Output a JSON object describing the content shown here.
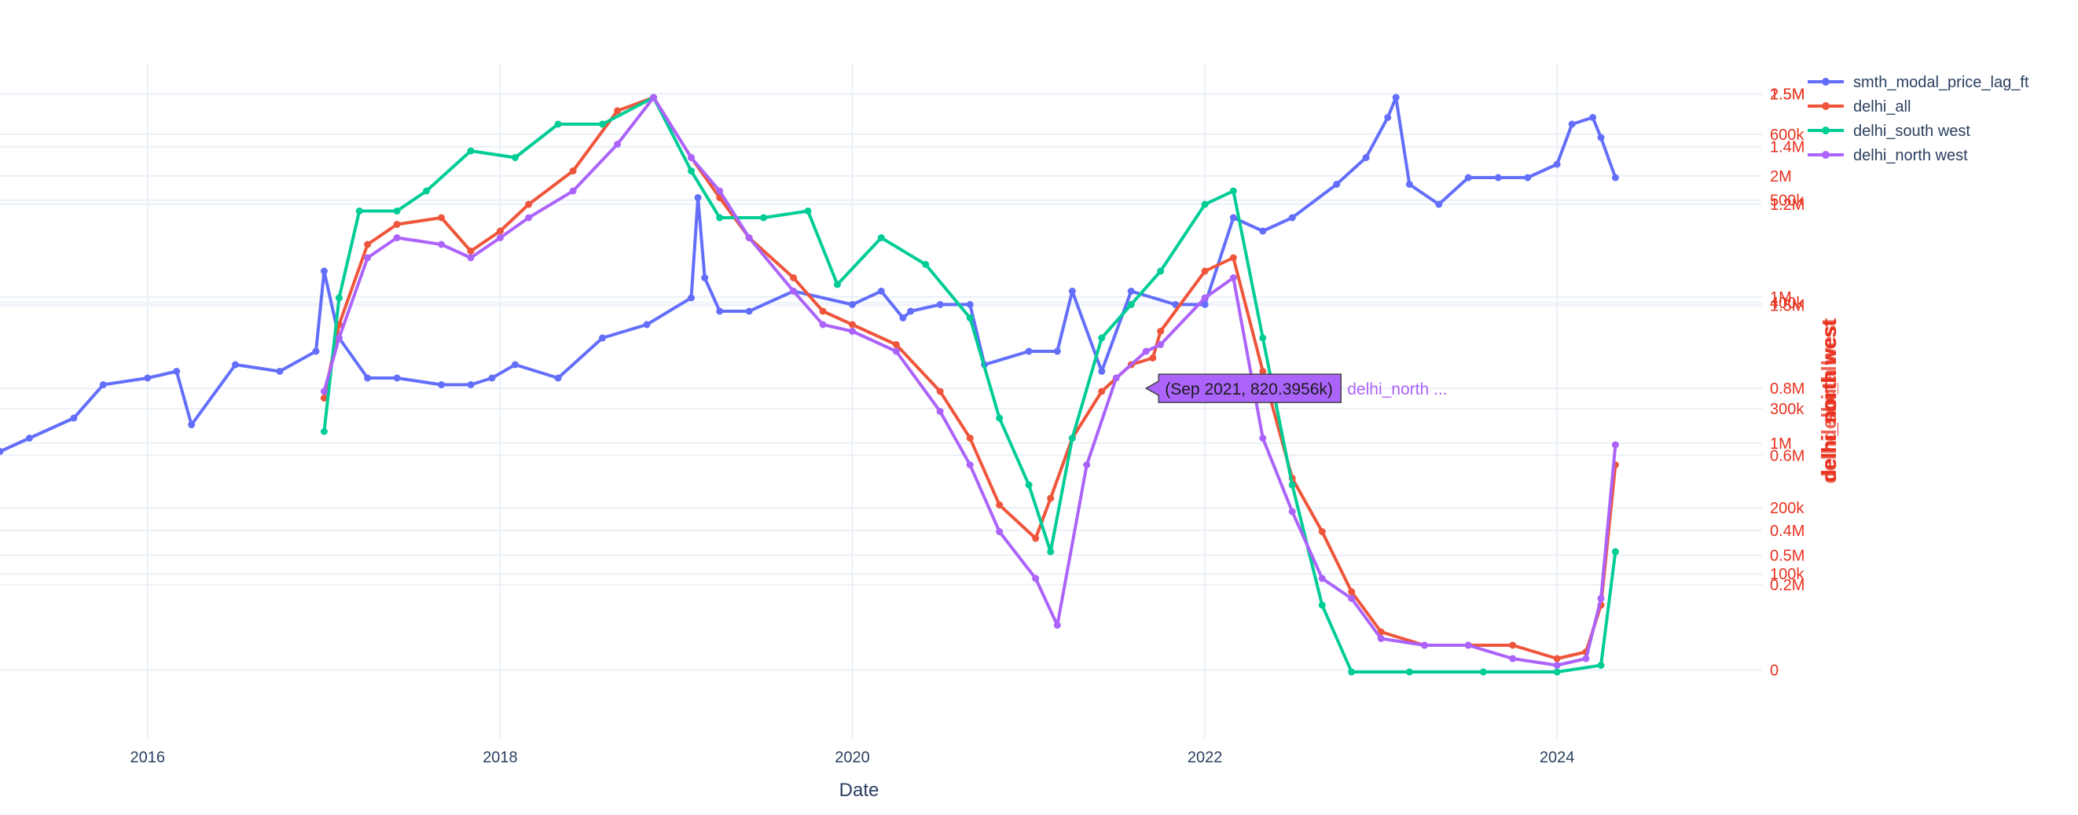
{
  "chart_data": {
    "type": "line",
    "title": "",
    "xlabel": "Date",
    "x_ticks": [
      "2016",
      "2018",
      "2020",
      "2022",
      "2024"
    ],
    "x_range": [
      "2015-03-01",
      "2025-03-01"
    ],
    "legend_placement": "top-right",
    "grid": true,
    "colors": {
      "smth_modal_price_lag_ft": "#636efa",
      "delhi_all": "#ef553b",
      "delhi_south west": "#00cc96",
      "delhi_north west": "#ab63fa",
      "axis_text": "#2a3f5f",
      "right_axis_text": "#e8311e"
    },
    "right_axis_title": "delhi_north west",
    "right_axis_title_overlap": [
      "delhi_all",
      "delhi_south west"
    ],
    "right_axis_labels": [
      {
        "label": "2.5M",
        "value_ref": 0.9655
      },
      {
        "label": "1.5M",
        "value_ref": 0.9655
      },
      {
        "label": "600k",
        "value_ref": 0.905
      },
      {
        "label": "1.4M",
        "value_ref": 0.8862
      },
      {
        "label": "2M",
        "value_ref": 0.8426
      },
      {
        "label": "500k",
        "value_ref": 0.8063
      },
      {
        "label": "1.2M",
        "value_ref": 0.8002
      },
      {
        "label": "1M",
        "value_ref": 0.6612
      },
      {
        "label": "400k",
        "value_ref": 0.6527
      },
      {
        "label": "1.5M",
        "value_ref": 0.6491
      },
      {
        "label": "0.8M",
        "value_ref": 0.5246
      },
      {
        "label": "300k",
        "value_ref": 0.4943
      },
      {
        "label": "1M",
        "value_ref": 0.4426
      },
      {
        "label": "0.6M",
        "value_ref": 0.4244
      },
      {
        "label": "200k",
        "value_ref": 0.3458
      },
      {
        "label": "0.4M",
        "value_ref": 0.3119
      },
      {
        "label": "0.5M",
        "value_ref": 0.2747
      },
      {
        "label": "100k",
        "value_ref": 0.2468
      },
      {
        "label": "0.2M",
        "value_ref": 0.2308
      },
      {
        "label": "0",
        "value_ref": 0.103
      }
    ],
    "series": [
      {
        "name": "smth_modal_price_lag_ft",
        "dates": [
          "2015-03-01",
          "2015-05-01",
          "2015-08-01",
          "2015-10-01",
          "2016-01-01",
          "2016-03-01",
          "2016-04-01",
          "2016-07-01",
          "2016-10-01",
          "2016-12-15",
          "2017-01-01",
          "2017-02-01",
          "2017-04-01",
          "2017-06-01",
          "2017-09-01",
          "2017-11-01",
          "2017-12-15",
          "2018-02-01",
          "2018-05-01",
          "2018-08-01",
          "2018-11-01",
          "2019-02-01",
          "2019-02-15",
          "2019-03-01",
          "2019-04-01",
          "2019-06-01",
          "2019-09-01",
          "2020-01-01",
          "2020-03-01",
          "2020-04-15",
          "2020-05-01",
          "2020-07-01",
          "2020-09-01",
          "2020-10-01",
          "2021-01-01",
          "2021-03-01",
          "2021-04-01",
          "2021-06-01",
          "2021-08-01",
          "2021-11-01",
          "2022-01-01",
          "2022-03-01",
          "2022-05-01",
          "2022-07-01",
          "2022-10-01",
          "2022-12-01",
          "2023-01-15",
          "2023-02-01",
          "2023-03-01",
          "2023-05-01",
          "2023-07-01",
          "2023-09-01",
          "2023-11-01",
          "2024-01-01",
          "2024-02-01",
          "2024-03-15",
          "2024-04-01",
          "2024-05-01"
        ],
        "y_ref": [
          0.43,
          0.45,
          0.48,
          0.53,
          0.54,
          0.55,
          0.47,
          0.56,
          0.55,
          0.58,
          0.7,
          0.6,
          0.54,
          0.54,
          0.53,
          0.53,
          0.54,
          0.56,
          0.54,
          0.6,
          0.62,
          0.66,
          0.81,
          0.69,
          0.64,
          0.64,
          0.67,
          0.65,
          0.67,
          0.63,
          0.64,
          0.65,
          0.65,
          0.56,
          0.58,
          0.58,
          0.67,
          0.55,
          0.67,
          0.65,
          0.65,
          0.78,
          0.76,
          0.78,
          0.83,
          0.87,
          0.93,
          0.96,
          0.83,
          0.8,
          0.84,
          0.84,
          0.84,
          0.86,
          0.92,
          0.93,
          0.9,
          0.84
        ]
      },
      {
        "name": "delhi_all",
        "dates": [
          "2017-01-01",
          "2017-02-01",
          "2017-04-01",
          "2017-06-01",
          "2017-09-01",
          "2017-11-01",
          "2018-01-01",
          "2018-03-01",
          "2018-06-01",
          "2018-09-01",
          "2018-11-15",
          "2019-02-01",
          "2019-04-01",
          "2019-06-01",
          "2019-09-01",
          "2019-11-01",
          "2020-01-01",
          "2020-04-01",
          "2020-07-01",
          "2020-09-01",
          "2020-11-01",
          "2021-01-15",
          "2021-02-15",
          "2021-04-01",
          "2021-06-01",
          "2021-08-01",
          "2021-09-15",
          "2021-10-01",
          "2022-01-01",
          "2022-03-01",
          "2022-05-01",
          "2022-07-01",
          "2022-09-01",
          "2022-11-01",
          "2023-01-01",
          "2023-04-01",
          "2023-07-01",
          "2023-10-01",
          "2024-01-01",
          "2024-03-01",
          "2024-04-01",
          "2024-05-01"
        ],
        "y_ref": [
          0.51,
          0.62,
          0.74,
          0.77,
          0.78,
          0.73,
          0.76,
          0.8,
          0.85,
          0.94,
          0.96,
          0.87,
          0.81,
          0.75,
          0.69,
          0.64,
          0.62,
          0.59,
          0.52,
          0.45,
          0.35,
          0.3,
          0.36,
          0.45,
          0.52,
          0.56,
          0.57,
          0.61,
          0.7,
          0.72,
          0.55,
          0.39,
          0.31,
          0.22,
          0.16,
          0.14,
          0.14,
          0.14,
          0.12,
          0.13,
          0.2,
          0.41
        ]
      },
      {
        "name": "delhi_south west",
        "dates": [
          "2017-01-01",
          "2017-02-01",
          "2017-03-15",
          "2017-06-01",
          "2017-08-01",
          "2017-11-01",
          "2018-02-01",
          "2018-05-01",
          "2018-08-01",
          "2018-11-15",
          "2019-02-01",
          "2019-04-01",
          "2019-07-01",
          "2019-10-01",
          "2019-12-01",
          "2020-03-01",
          "2020-06-01",
          "2020-09-01",
          "2020-11-01",
          "2021-01-01",
          "2021-02-15",
          "2021-04-01",
          "2021-06-01",
          "2021-08-01",
          "2021-10-01",
          "2022-01-01",
          "2022-03-01",
          "2022-05-01",
          "2022-07-01",
          "2022-09-01",
          "2022-11-01",
          "2023-03-01",
          "2023-08-01",
          "2024-01-01",
          "2024-04-01",
          "2024-05-01"
        ],
        "y_ref": [
          0.46,
          0.66,
          0.79,
          0.79,
          0.82,
          0.88,
          0.87,
          0.92,
          0.92,
          0.96,
          0.85,
          0.78,
          0.78,
          0.79,
          0.68,
          0.75,
          0.71,
          0.63,
          0.48,
          0.38,
          0.28,
          0.45,
          0.6,
          0.65,
          0.7,
          0.8,
          0.82,
          0.6,
          0.38,
          0.2,
          0.1,
          0.1,
          0.1,
          0.1,
          0.11,
          0.28
        ]
      },
      {
        "name": "delhi_north west",
        "dates": [
          "2017-01-01",
          "2017-02-01",
          "2017-04-01",
          "2017-06-01",
          "2017-09-01",
          "2017-11-01",
          "2018-01-01",
          "2018-03-01",
          "2018-06-01",
          "2018-09-01",
          "2018-11-15",
          "2019-02-01",
          "2019-04-01",
          "2019-06-01",
          "2019-09-01",
          "2019-11-01",
          "2020-01-01",
          "2020-04-01",
          "2020-07-01",
          "2020-09-01",
          "2020-11-01",
          "2021-01-15",
          "2021-03-01",
          "2021-05-01",
          "2021-07-01",
          "2021-09-01",
          "2021-10-01",
          "2022-01-01",
          "2022-03-01",
          "2022-05-01",
          "2022-07-01",
          "2022-09-01",
          "2022-11-01",
          "2023-01-01",
          "2023-04-01",
          "2023-07-01",
          "2023-10-01",
          "2024-01-01",
          "2024-03-01",
          "2024-04-01",
          "2024-05-01"
        ],
        "y_ref": [
          0.52,
          0.6,
          0.72,
          0.75,
          0.74,
          0.72,
          0.75,
          0.78,
          0.82,
          0.89,
          0.96,
          0.87,
          0.82,
          0.75,
          0.67,
          0.62,
          0.61,
          0.58,
          0.49,
          0.41,
          0.31,
          0.24,
          0.17,
          0.41,
          0.54,
          0.58,
          0.59,
          0.66,
          0.69,
          0.45,
          0.34,
          0.24,
          0.21,
          0.15,
          0.14,
          0.14,
          0.12,
          0.11,
          0.12,
          0.21,
          0.44
        ]
      }
    ],
    "hover_label": {
      "series": "delhi_north west",
      "text": "(Sep 2021, 820.3956k)",
      "name_text": "delhi_north ...",
      "date": "2021-09-01",
      "y_ref": 0.5246
    }
  }
}
